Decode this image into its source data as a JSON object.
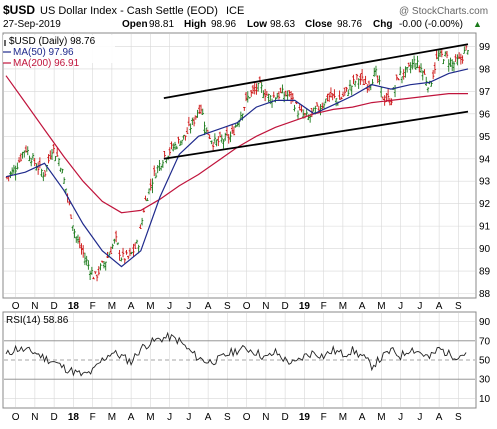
{
  "header": {
    "symbol": "$USD",
    "name": "US Dollar Index - Cash Settle (EOD)",
    "exchange": "ICE",
    "watermark": "@ StockCharts.com",
    "date": "27-Sep-2019",
    "ohlc": {
      "open_label": "Open",
      "open": "98.81",
      "high_label": "High",
      "high": "98.96",
      "low_label": "Low",
      "low": "98.63",
      "close_label": "Close",
      "close": "98.76",
      "chg_label": "Chg",
      "chg": "-0.00 (-0.00%)"
    },
    "up_arrow": "▲"
  },
  "legend": [
    {
      "label": "$USD (Daily) 98.76",
      "color": "#000000",
      "marker": "bar"
    },
    {
      "label": "MA(50) 97.96",
      "color": "#1f2a8c",
      "marker": "line"
    },
    {
      "label": "MA(200) 96.91",
      "color": "#c0143c",
      "marker": "line"
    }
  ],
  "rsi_legend": "RSI(14) 58.86",
  "colors": {
    "up": "#1a7a1a",
    "down": "#cc1111",
    "ma50": "#1f2a8c",
    "ma200": "#c0143c",
    "grid": "#d8d8d8",
    "trend": "#000000"
  },
  "chart_data": [
    {
      "type": "ohlc-bar",
      "title": "$USD US Dollar Index - Cash Settle (EOD)",
      "x_axis_labels": [
        "O",
        "N",
        "D",
        "18",
        "F",
        "M",
        "A",
        "M",
        "J",
        "J",
        "A",
        "S",
        "O",
        "N",
        "D",
        "19",
        "F",
        "M",
        "A",
        "M",
        "J",
        "J",
        "A",
        "S"
      ],
      "y_ticks": [
        88,
        89,
        90,
        91,
        92,
        93,
        94,
        95,
        96,
        97,
        98,
        99
      ],
      "ylim": [
        87.8,
        99.6
      ],
      "grid": true,
      "series": [
        {
          "name": "$USD (Daily)",
          "points": [
            [
              0,
              93.1
            ],
            [
              0.5,
              93.6
            ],
            [
              1,
              94.5
            ],
            [
              1.5,
              93.8
            ],
            [
              2,
              93.3
            ],
            [
              2.4,
              94.5
            ],
            [
              2.8,
              93.9
            ],
            [
              3.2,
              92.3
            ],
            [
              3.6,
              90.6
            ],
            [
              4.2,
              89.4
            ],
            [
              4.6,
              88.7
            ],
            [
              5.2,
              89.5
            ],
            [
              5.7,
              90.4
            ],
            [
              6,
              89.6
            ],
            [
              6.4,
              89.6
            ],
            [
              6.9,
              90.3
            ],
            [
              7.2,
              92.0
            ],
            [
              7.7,
              93.3
            ],
            [
              8.2,
              94.1
            ],
            [
              8.8,
              94.6
            ],
            [
              9.3,
              95.0
            ],
            [
              9.7,
              95.6
            ],
            [
              10.1,
              96.4
            ],
            [
              10.4,
              95.3
            ],
            [
              10.8,
              94.7
            ],
            [
              11.2,
              94.8
            ],
            [
              11.7,
              95.0
            ],
            [
              12.2,
              96.0
            ],
            [
              12.6,
              96.8
            ],
            [
              13.2,
              97.2
            ],
            [
              13.7,
              96.7
            ],
            [
              14.3,
              96.9
            ],
            [
              14.8,
              96.8
            ],
            [
              15.2,
              96.1
            ],
            [
              15.7,
              95.8
            ],
            [
              16.3,
              96.3
            ],
            [
              16.8,
              96.8
            ],
            [
              17.3,
              96.6
            ],
            [
              17.8,
              97.1
            ],
            [
              18.3,
              97.6
            ],
            [
              18.8,
              97.3
            ],
            [
              19.2,
              97.8
            ],
            [
              19.6,
              96.7
            ],
            [
              20.0,
              96.6
            ],
            [
              20.4,
              97.7
            ],
            [
              20.8,
              97.8
            ],
            [
              21.2,
              98.3
            ],
            [
              21.6,
              98.0
            ],
            [
              22.0,
              97.2
            ],
            [
              22.4,
              98.5
            ],
            [
              22.8,
              98.6
            ],
            [
              23.2,
              98.2
            ],
            [
              23.6,
              98.4
            ],
            [
              24.0,
              99.0
            ]
          ]
        },
        {
          "name": "MA(50)",
          "last": 97.96,
          "points": [
            [
              0,
              93.2
            ],
            [
              1,
              93.4
            ],
            [
              2,
              93.8
            ],
            [
              3,
              92.6
            ],
            [
              4,
              91.1
            ],
            [
              5,
              89.9
            ],
            [
              6,
              89.2
            ],
            [
              7,
              89.9
            ],
            [
              8,
              92.3
            ],
            [
              9,
              94.2
            ],
            [
              10,
              95.0
            ],
            [
              11,
              95.3
            ],
            [
              12,
              95.6
            ],
            [
              13,
              96.3
            ],
            [
              14,
              96.6
            ],
            [
              15,
              96.6
            ],
            [
              16,
              96.0
            ],
            [
              17,
              96.4
            ],
            [
              18,
              96.8
            ],
            [
              19,
              97.3
            ],
            [
              20,
              97.1
            ],
            [
              21,
              97.3
            ],
            [
              22,
              97.4
            ],
            [
              23,
              97.8
            ],
            [
              24,
              98.0
            ]
          ]
        },
        {
          "name": "MA(200)",
          "last": 96.91,
          "points": [
            [
              0,
              97.7
            ],
            [
              1,
              96.5
            ],
            [
              2,
              95.3
            ],
            [
              3,
              94.1
            ],
            [
              4,
              93.0
            ],
            [
              5,
              92.1
            ],
            [
              6,
              91.6
            ],
            [
              7,
              91.7
            ],
            [
              8,
              92.2
            ],
            [
              9,
              92.8
            ],
            [
              10,
              93.3
            ],
            [
              11,
              93.9
            ],
            [
              12,
              94.5
            ],
            [
              13,
              95.0
            ],
            [
              14,
              95.4
            ],
            [
              15,
              95.7
            ],
            [
              16,
              96.0
            ],
            [
              17,
              96.2
            ],
            [
              18,
              96.3
            ],
            [
              19,
              96.5
            ],
            [
              20,
              96.6
            ],
            [
              21,
              96.7
            ],
            [
              22,
              96.8
            ],
            [
              23,
              96.9
            ],
            [
              24,
              96.9
            ]
          ]
        }
      ],
      "trendlines": [
        [
          [
            8.2,
            96.7
          ],
          [
            24.0,
            99.1
          ]
        ],
        [
          [
            8.2,
            94.0
          ],
          [
            24.0,
            96.1
          ]
        ]
      ]
    },
    {
      "type": "line",
      "title": "RSI(14) 58.86",
      "y_ticks": [
        10,
        30,
        50,
        70,
        90
      ],
      "ylim": [
        0,
        100
      ],
      "reference_lines": [
        30,
        50,
        70
      ],
      "series": [
        {
          "name": "RSI(14)",
          "points": [
            [
              0,
              55
            ],
            [
              0.5,
              62
            ],
            [
              1,
              60
            ],
            [
              1.5,
              58
            ],
            [
              2,
              52
            ],
            [
              2.5,
              48
            ],
            [
              3,
              42
            ],
            [
              3.5,
              38
            ],
            [
              4,
              34
            ],
            [
              4.5,
              38
            ],
            [
              5,
              50
            ],
            [
              5.5,
              58
            ],
            [
              6,
              54
            ],
            [
              6.5,
              48
            ],
            [
              7,
              62
            ],
            [
              7.5,
              68
            ],
            [
              8,
              72
            ],
            [
              8.5,
              74
            ],
            [
              9,
              70
            ],
            [
              9.5,
              60
            ],
            [
              10,
              52
            ],
            [
              10.5,
              48
            ],
            [
              11,
              50
            ],
            [
              11.5,
              56
            ],
            [
              12,
              60
            ],
            [
              12.5,
              62
            ],
            [
              13,
              58
            ],
            [
              13.5,
              52
            ],
            [
              14,
              58
            ],
            [
              14.5,
              50
            ],
            [
              15,
              46
            ],
            [
              15.5,
              54
            ],
            [
              16,
              58
            ],
            [
              16.5,
              54
            ],
            [
              17,
              60
            ],
            [
              17.5,
              56
            ],
            [
              18,
              60
            ],
            [
              18.5,
              54
            ],
            [
              19,
              44
            ],
            [
              19.5,
              52
            ],
            [
              20,
              60
            ],
            [
              20.5,
              54
            ],
            [
              21,
              62
            ],
            [
              21.5,
              58
            ],
            [
              22,
              52
            ],
            [
              22.5,
              62
            ],
            [
              23,
              56
            ],
            [
              23.5,
              54
            ],
            [
              24,
              58.86
            ]
          ]
        }
      ]
    }
  ]
}
